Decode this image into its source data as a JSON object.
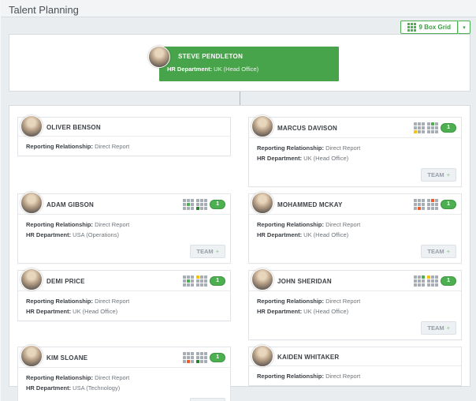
{
  "page": {
    "title": "Talent Planning"
  },
  "toolbar": {
    "nine_box_button_label": "9 Box Grid",
    "caret": "▾"
  },
  "colors": {
    "green": "#4caf50",
    "dark_green": "#2e7d32",
    "yellow": "#fcc200",
    "orange": "#f05a28",
    "grid_gray": "#a6adb4",
    "manager_card_green": "#47a44b"
  },
  "manager_card": {
    "name": "STEVE PENDLETON",
    "field_label": "HR Department:",
    "field_value": " UK (Head Office)"
  },
  "team_button": {
    "label": "TEAM",
    "plus": "+"
  },
  "cards": [
    {
      "name": "OLIVER BENSON",
      "fields": [
        {
          "label": "Reporting Relationship:",
          "value": " Direct Report"
        }
      ],
      "grids": [],
      "badge": null,
      "team": false
    },
    {
      "name": "MARCUS DAVISON",
      "fields": [
        {
          "label": "Reporting Relationship:",
          "value": " Direct Report"
        },
        {
          "label": "HR Department:",
          "value": " UK (Head Office)"
        }
      ],
      "grids": [
        {
          "cell": 6,
          "color": "yellow"
        },
        {
          "cell": 1,
          "color": "green"
        }
      ],
      "badge": "1",
      "team": true
    },
    {
      "name": "ADAM GIBSON",
      "fields": [
        {
          "label": "Reporting Relationship:",
          "value": " Direct Report"
        },
        {
          "label": "HR Department:",
          "value": " USA (Operations)"
        }
      ],
      "grids": [
        {
          "cell": 4,
          "color": "green"
        },
        {
          "cell": 6,
          "color": "dark_green"
        }
      ],
      "badge": "1",
      "team": true
    },
    {
      "name": "MOHAMMED MCKAY",
      "fields": [
        {
          "label": "Reporting Relationship:",
          "value": " Direct Report"
        },
        {
          "label": "HR Department:",
          "value": " UK (Head Office)"
        }
      ],
      "grids": [
        {
          "cell": 7,
          "color": "orange"
        },
        {
          "cell": 1,
          "color": "orange"
        }
      ],
      "badge": "1",
      "team": true
    },
    {
      "name": "DEMI PRICE",
      "fields": [
        {
          "label": "Reporting Relationship:",
          "value": " Direct Report"
        },
        {
          "label": "HR Department:",
          "value": " UK (Head Office)"
        }
      ],
      "grids": [
        {
          "cell": 4,
          "color": "green"
        },
        {
          "cell": 0,
          "color": "yellow"
        }
      ],
      "badge": "1",
      "team": false
    },
    {
      "name": "JOHN SHERIDAN",
      "fields": [
        {
          "label": "Reporting Relationship:",
          "value": " Direct Report"
        },
        {
          "label": "HR Department:",
          "value": " UK (Head Office)"
        }
      ],
      "grids": [
        {
          "cell": 2,
          "color": "green"
        },
        {
          "cell": 0,
          "color": "yellow"
        }
      ],
      "badge": "1",
      "team": true
    },
    {
      "name": "KIM SLOANE",
      "fields": [
        {
          "label": "Reporting Relationship:",
          "value": " Direct Report"
        },
        {
          "label": "HR Department:",
          "value": " USA (Technology)"
        }
      ],
      "grids": [
        {
          "cell": 7,
          "color": "orange"
        },
        {
          "cell": 6,
          "color": "dark_green"
        }
      ],
      "badge": "1",
      "team": true
    },
    {
      "name": "KAIDEN WHITAKER",
      "fields": [
        {
          "label": "Reporting Relationship:",
          "value": " Direct Report"
        }
      ],
      "grids": [],
      "badge": null,
      "team": false
    }
  ]
}
